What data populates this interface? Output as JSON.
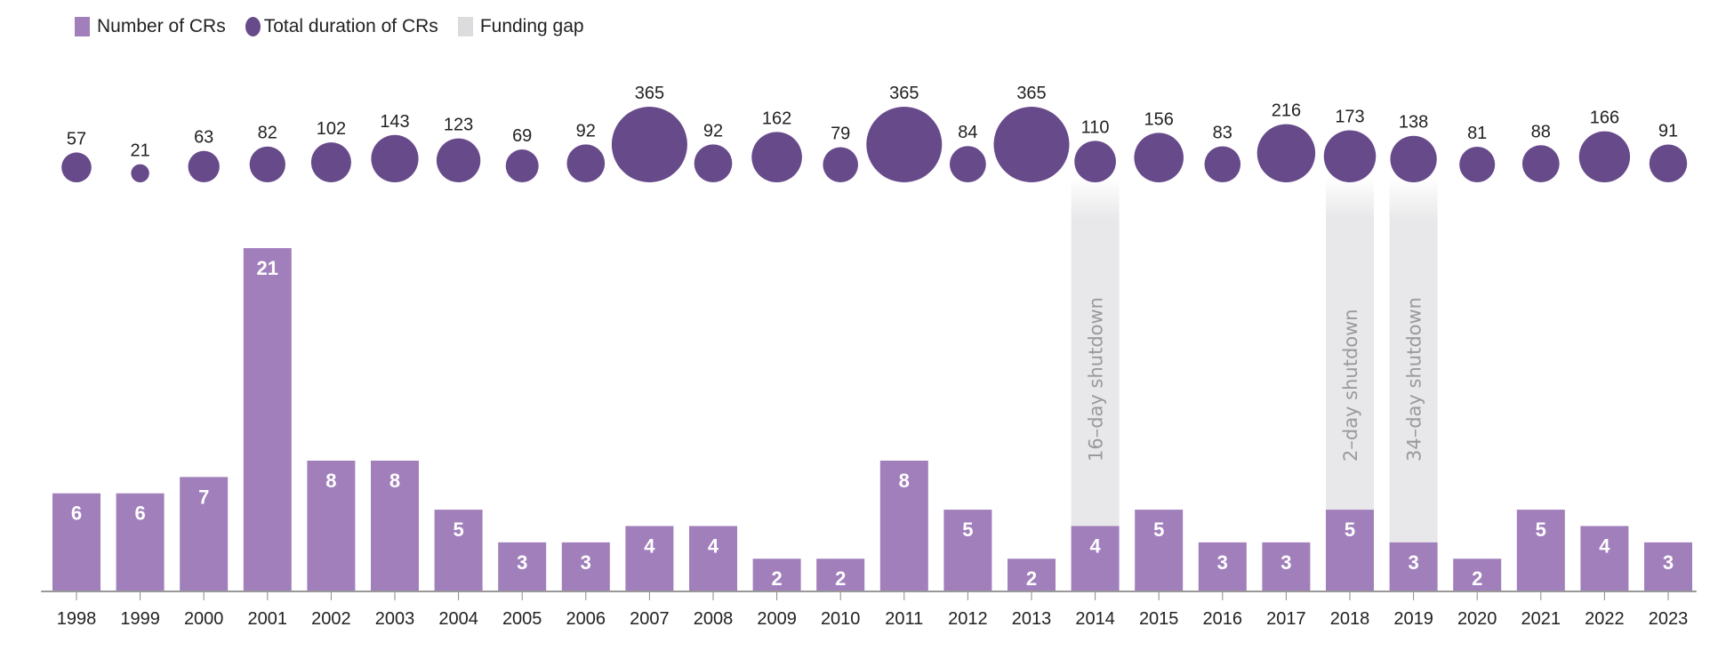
{
  "chart_data": {
    "type": "bar",
    "legend": {
      "placement": "top-left",
      "items": [
        {
          "label": "Number of CRs",
          "shape": "square",
          "color": "#a17fbb"
        },
        {
          "label": "Total duration of CRs",
          "shape": "circle",
          "color": "#674a8a"
        },
        {
          "label": "Funding gap",
          "shape": "square",
          "color": "#dcdcde"
        }
      ]
    },
    "categories": [
      "1998",
      "1999",
      "2000",
      "2001",
      "2002",
      "2003",
      "2004",
      "2005",
      "2006",
      "2007",
      "2008",
      "2009",
      "2010",
      "2011",
      "2012",
      "2013",
      "2014",
      "2015",
      "2016",
      "2017",
      "2018",
      "2019",
      "2020",
      "2021",
      "2022",
      "2023"
    ],
    "series": [
      {
        "name": "Number of CRs",
        "type": "bar",
        "color": "#a17fbb",
        "values": [
          6,
          6,
          7,
          21,
          8,
          8,
          5,
          3,
          3,
          4,
          4,
          2,
          2,
          8,
          5,
          2,
          4,
          5,
          3,
          3,
          5,
          3,
          2,
          5,
          4,
          3
        ]
      },
      {
        "name": "Total duration of CRs",
        "type": "bubble",
        "color": "#674a8a",
        "values": [
          57,
          21,
          63,
          82,
          102,
          143,
          123,
          69,
          92,
          365,
          92,
          162,
          79,
          365,
          84,
          365,
          110,
          156,
          83,
          216,
          173,
          138,
          81,
          88,
          166,
          91
        ]
      }
    ],
    "funding_gaps": [
      {
        "category": "2014",
        "label": "16–day shutdown"
      },
      {
        "category": "2018",
        "label": "2–day shutdown"
      },
      {
        "category": "2019",
        "label": "34–day shutdown"
      }
    ],
    "grid": false,
    "ylim": [
      0,
      21
    ]
  }
}
